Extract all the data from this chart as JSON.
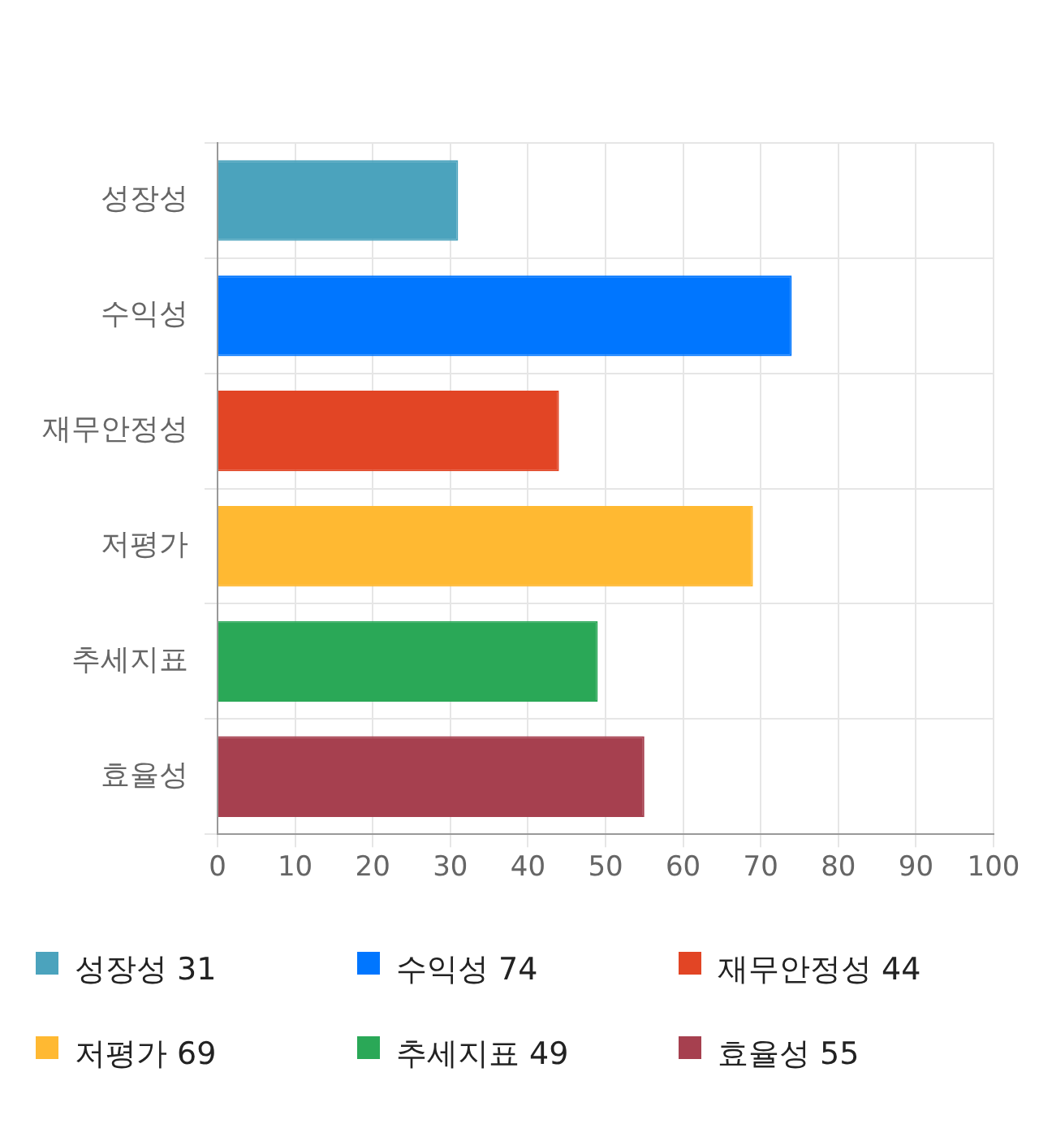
{
  "chart_data": {
    "type": "bar",
    "orientation": "horizontal",
    "categories": [
      "성장성",
      "수익성",
      "재무안정성",
      "저평가",
      "추세지표",
      "효율성"
    ],
    "series": [
      {
        "name": "성장성 31",
        "color": "#4ba3bd",
        "values": [
          31,
          null,
          null,
          null,
          null,
          null
        ]
      },
      {
        "name": "수익성 74",
        "color": "#0076ff",
        "values": [
          null,
          74,
          null,
          null,
          null,
          null
        ]
      },
      {
        "name": "재무안정성 44",
        "color": "#e24525",
        "values": [
          null,
          null,
          44,
          null,
          null,
          null
        ]
      },
      {
        "name": "저평가 69",
        "color": "#ffb932",
        "values": [
          null,
          null,
          null,
          69,
          null,
          null
        ]
      },
      {
        "name": "추세지표 49",
        "color": "#2aa857",
        "values": [
          null,
          null,
          null,
          null,
          49,
          null
        ]
      },
      {
        "name": "효율성 55",
        "color": "#a6404f",
        "values": [
          null,
          null,
          null,
          null,
          null,
          55
        ]
      }
    ],
    "xlim": [
      0,
      100
    ],
    "xticks": [
      0,
      10,
      20,
      30,
      40,
      50,
      60,
      70,
      80,
      90,
      100
    ],
    "grid": true,
    "legend": "bottom"
  }
}
